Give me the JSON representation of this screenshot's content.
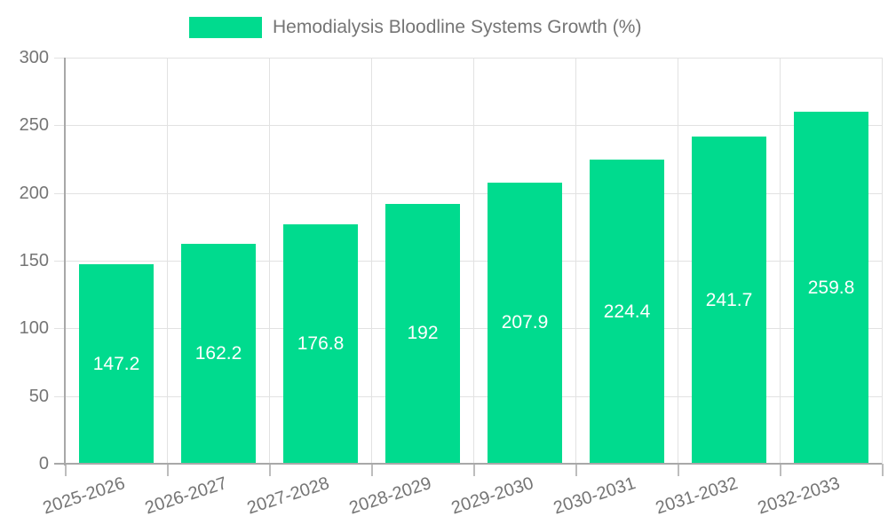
{
  "chart_data": {
    "type": "bar",
    "title": "Hemodialysis Bloodline Systems Growth (%)",
    "categories": [
      "2025-2026",
      "2026-2027",
      "2027-2028",
      "2028-2029",
      "2029-2030",
      "2030-2031",
      "2031-2032",
      "2032-2033"
    ],
    "values": [
      147.2,
      162.2,
      176.8,
      192,
      207.9,
      224.4,
      241.7,
      259.8
    ],
    "value_labels": [
      "147.2",
      "162.2",
      "176.8",
      "192",
      "207.9",
      "224.4",
      "241.7",
      "259.8"
    ],
    "xlabel": "",
    "ylabel": "",
    "ylim": [
      0,
      300
    ],
    "yticks": [
      0,
      50,
      100,
      150,
      200,
      250,
      300
    ],
    "grid": true,
    "legend_position": "top",
    "value_label_position": "inside-center",
    "colors": {
      "bar": "#00db8e",
      "axis": "#a8a8a8",
      "grid": "#e2e2e2",
      "tick": "#bdbdbd",
      "tick_label": "#757575",
      "value_label": "#ffffff",
      "background": "#ffffff"
    }
  }
}
